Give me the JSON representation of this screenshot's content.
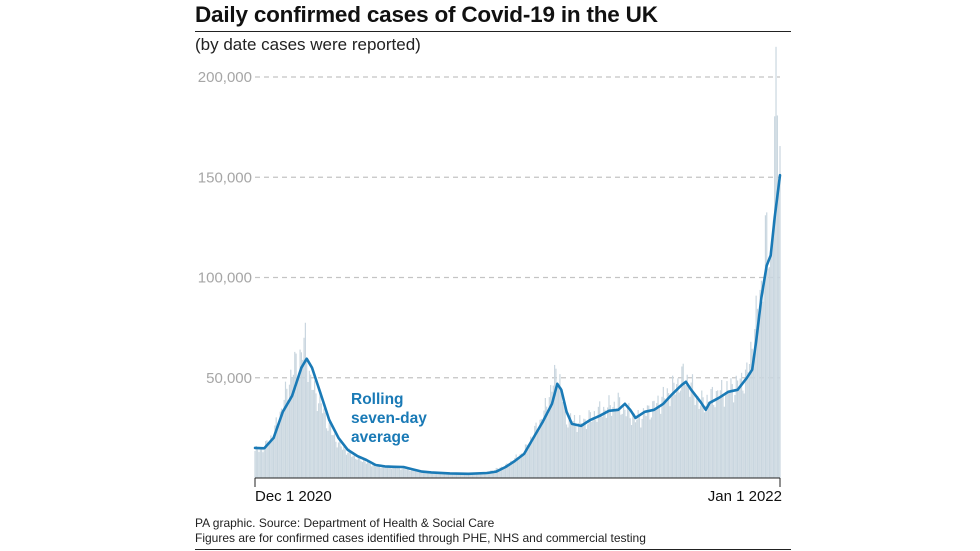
{
  "header": {
    "title": "Daily confirmed cases of Covid-19 in the UK",
    "subtitle": "(by date cases were reported)"
  },
  "footer": {
    "source": "PA graphic. Source: Department of Health & Social Care",
    "note": "Figures are for confirmed cases identified through PHE, NHS and commercial testing"
  },
  "chart_data": {
    "type": "bar",
    "title": "Daily confirmed cases of Covid-19 in the UK",
    "subtitle": "(by date cases were reported)",
    "x_start": "2020-12-01",
    "x_end": "2022-01-01",
    "x_tick_labels": [
      "Dec 1 2020",
      "Jan 1 2022"
    ],
    "ylim": [
      0,
      200000
    ],
    "y_ticks": [
      50000,
      100000,
      150000,
      200000
    ],
    "y_tick_labels": [
      "50,000",
      "100,000",
      "150,000",
      "200,000"
    ],
    "grid": "horizontal dashed",
    "bar_color": "#c9d6df",
    "line_color": "#1a7ab6",
    "annotation": [
      "Rolling",
      "seven-day",
      "average"
    ],
    "rolling_average": {
      "name": "Rolling seven-day average",
      "points": [
        [
          "2020-12-01",
          15000
        ],
        [
          "2020-12-08",
          14800
        ],
        [
          "2020-12-15",
          20000
        ],
        [
          "2020-12-22",
          33000
        ],
        [
          "2020-12-29",
          41000
        ],
        [
          "2021-01-05",
          55000
        ],
        [
          "2021-01-09",
          59500
        ],
        [
          "2021-01-13",
          55000
        ],
        [
          "2021-01-19",
          43000
        ],
        [
          "2021-01-26",
          29000
        ],
        [
          "2021-02-02",
          20000
        ],
        [
          "2021-02-09",
          14000
        ],
        [
          "2021-02-16",
          11000
        ],
        [
          "2021-02-23",
          9000
        ],
        [
          "2021-03-02",
          6500
        ],
        [
          "2021-03-09",
          5800
        ],
        [
          "2021-03-16",
          5600
        ],
        [
          "2021-03-23",
          5500
        ],
        [
          "2021-03-30",
          4300
        ],
        [
          "2021-04-06",
          3200
        ],
        [
          "2021-04-13",
          2800
        ],
        [
          "2021-04-27",
          2300
        ],
        [
          "2021-05-11",
          2100
        ],
        [
          "2021-05-25",
          2500
        ],
        [
          "2021-06-01",
          3200
        ],
        [
          "2021-06-08",
          5500
        ],
        [
          "2021-06-15",
          8500
        ],
        [
          "2021-06-22",
          12000
        ],
        [
          "2021-06-29",
          20000
        ],
        [
          "2021-07-06",
          28000
        ],
        [
          "2021-07-13",
          37000
        ],
        [
          "2021-07-17",
          47000
        ],
        [
          "2021-07-20",
          44000
        ],
        [
          "2021-07-24",
          33000
        ],
        [
          "2021-07-28",
          27000
        ],
        [
          "2021-08-04",
          26000
        ],
        [
          "2021-08-11",
          29000
        ],
        [
          "2021-08-18",
          31000
        ],
        [
          "2021-08-25",
          33500
        ],
        [
          "2021-09-01",
          34000
        ],
        [
          "2021-09-06",
          37000
        ],
        [
          "2021-09-10",
          34000
        ],
        [
          "2021-09-14",
          30000
        ],
        [
          "2021-09-21",
          33000
        ],
        [
          "2021-09-28",
          34000
        ],
        [
          "2021-10-05",
          37000
        ],
        [
          "2021-10-12",
          42000
        ],
        [
          "2021-10-19",
          46500
        ],
        [
          "2021-10-22",
          48000
        ],
        [
          "2021-10-26",
          44000
        ],
        [
          "2021-11-02",
          38000
        ],
        [
          "2021-11-06",
          34000
        ],
        [
          "2021-11-09",
          37500
        ],
        [
          "2021-11-16",
          40000
        ],
        [
          "2021-11-23",
          43000
        ],
        [
          "2021-11-30",
          44000
        ],
        [
          "2021-12-07",
          50000
        ],
        [
          "2021-12-11",
          54000
        ],
        [
          "2021-12-14",
          68000
        ],
        [
          "2021-12-18",
          90000
        ],
        [
          "2021-12-22",
          106000
        ],
        [
          "2021-12-25",
          111000
        ],
        [
          "2021-12-28",
          130000
        ],
        [
          "2022-01-01",
          151000
        ]
      ]
    },
    "daily_cases": {
      "name": "Daily confirmed cases",
      "points": [
        [
          "2020-12-01",
          13500
        ],
        [
          "2020-12-08",
          15000
        ],
        [
          "2020-12-15",
          22000
        ],
        [
          "2020-12-22",
          36000
        ],
        [
          "2020-12-29",
          53000
        ],
        [
          "2021-01-05",
          61000
        ],
        [
          "2021-01-08",
          68000
        ],
        [
          "2021-01-12",
          47000
        ],
        [
          "2021-01-19",
          38000
        ],
        [
          "2021-01-26",
          25000
        ],
        [
          "2021-02-02",
          17000
        ],
        [
          "2021-02-09",
          13000
        ],
        [
          "2021-02-16",
          10000
        ],
        [
          "2021-02-23",
          8000
        ],
        [
          "2021-03-02",
          6000
        ],
        [
          "2021-03-16",
          5500
        ],
        [
          "2021-03-30",
          4000
        ],
        [
          "2021-04-13",
          2500
        ],
        [
          "2021-04-27",
          2200
        ],
        [
          "2021-05-11",
          2000
        ],
        [
          "2021-05-25",
          2800
        ],
        [
          "2021-06-08",
          6000
        ],
        [
          "2021-06-22",
          13000
        ],
        [
          "2021-06-29",
          22000
        ],
        [
          "2021-07-06",
          30000
        ],
        [
          "2021-07-13",
          45000
        ],
        [
          "2021-07-17",
          54000
        ],
        [
          "2021-07-24",
          30000
        ],
        [
          "2021-08-04",
          27000
        ],
        [
          "2021-08-18",
          33000
        ],
        [
          "2021-09-01",
          37000
        ],
        [
          "2021-09-15",
          29000
        ],
        [
          "2021-09-29",
          36000
        ],
        [
          "2021-10-12",
          44000
        ],
        [
          "2021-10-21",
          51000
        ],
        [
          "2021-11-02",
          37000
        ],
        [
          "2021-11-16",
          42000
        ],
        [
          "2021-11-30",
          46000
        ],
        [
          "2021-12-07",
          51000
        ],
        [
          "2021-12-14",
          78000
        ],
        [
          "2021-12-18",
          95000
        ],
        [
          "2021-12-22",
          120000
        ],
        [
          "2021-12-25",
          105000
        ],
        [
          "2021-12-29",
          185000
        ],
        [
          "2021-12-30",
          190000
        ],
        [
          "2021-12-31",
          162000
        ],
        [
          "2022-01-01",
          160000
        ]
      ]
    }
  }
}
